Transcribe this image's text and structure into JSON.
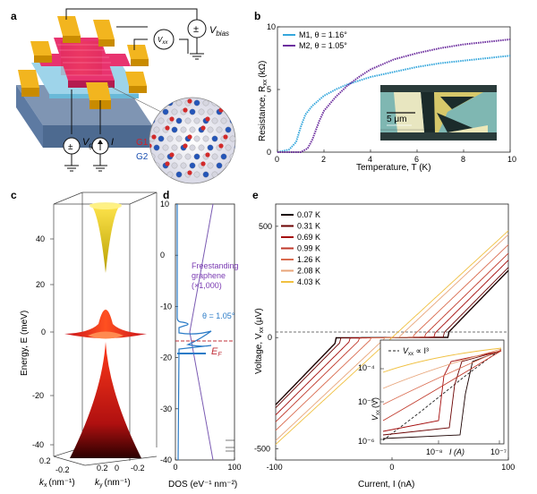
{
  "panels": {
    "a": {
      "letter": "a",
      "v_bias": "V",
      "v_bias_sub": "bias",
      "v_xx": "V",
      "v_xx_sub": "xx",
      "v_g": "V",
      "v_g_sub": "g",
      "current": "I",
      "layer1": "G1",
      "layer2": "G2"
    },
    "b": {
      "letter": "b",
      "legend": [
        "M1, θ = 1.16°",
        "M2, θ = 1.05°"
      ],
      "colors": [
        "#35a7dc",
        "#6c2e9e"
      ],
      "scale_bar": "5 μm",
      "xlabel": "Temperature, T (K)",
      "ylabel": "Resistance, R",
      "ylabel_sub": "xx",
      "ylabel_unit": "(kΩ)"
    },
    "c": {
      "letter": "c",
      "ylabel": "Energy, E (meV)",
      "kx_label": "k",
      "kx_sub": "x",
      "kx_unit": "(nm⁻¹)",
      "ky_label": "k",
      "ky_sub": "y",
      "ky_unit": "(nm⁻¹)"
    },
    "d": {
      "letter": "d",
      "freestanding": [
        "Freestanding",
        "graphene",
        "(×1,000)"
      ],
      "theta": "θ = 1.05°",
      "ef": "E",
      "ef_sub": "F",
      "xlabel": "DOS (eV⁻¹ nm⁻²)"
    },
    "e": {
      "letter": "e",
      "ylabel": "Voltage, V",
      "ylabel_sub": "xx",
      "ylabel_unit": "(μV)",
      "xlabel": "Current, I (nA)",
      "inset_legend": "V",
      "inset_legend_rest": "xx",
      "inset_legend_tail": " ∝ I³",
      "inset_ylabel": "V",
      "inset_ylabel_sub": "xx",
      "inset_ylabel_unit": "(V)",
      "inset_xlabel": "I (A)"
    }
  },
  "chart_data": [
    {
      "id": "b",
      "type": "line",
      "title": "",
      "xlabel": "Temperature, T (K)",
      "ylabel": "Resistance, Rxx (kΩ)",
      "xlim": [
        0,
        10
      ],
      "ylim": [
        0,
        10
      ],
      "xticks": [
        "0",
        "2",
        "4",
        "6",
        "8",
        "10"
      ],
      "yticks": [
        "0",
        "5",
        "10"
      ],
      "series": [
        {
          "name": "M1, θ = 1.16°",
          "x": [
            0,
            0.5,
            0.8,
            1.0,
            1.2,
            1.5,
            2.0,
            2.5,
            3.0,
            4.0,
            5.0,
            6.0,
            7.0,
            8.0,
            9.0,
            10.0
          ],
          "y": [
            0,
            0.2,
            0.8,
            2.0,
            3.0,
            3.7,
            4.5,
            5.0,
            5.4,
            6.0,
            6.4,
            6.8,
            7.1,
            7.3,
            7.5,
            7.7
          ]
        },
        {
          "name": "M2, θ = 1.05°",
          "x": [
            0,
            1.0,
            1.3,
            1.5,
            1.8,
            2.0,
            2.5,
            3.0,
            3.5,
            4.0,
            5.0,
            6.0,
            7.0,
            8.0,
            9.0,
            10.0
          ],
          "y": [
            0,
            0,
            0.3,
            1.0,
            2.5,
            3.3,
            4.4,
            5.3,
            6.0,
            6.6,
            7.4,
            7.9,
            8.3,
            8.6,
            8.8,
            9.0
          ]
        }
      ]
    },
    {
      "id": "d",
      "type": "line",
      "xlabel": "DOS (eV⁻¹ nm⁻²)",
      "ylabel": "",
      "xlim": [
        0,
        100
      ],
      "ylim": [
        -40,
        10
      ],
      "xticks": [
        "0",
        "100"
      ],
      "yticks": [
        "10",
        "0",
        "-10",
        "-20",
        "-30",
        "-40"
      ]
    },
    {
      "id": "e",
      "type": "line",
      "xlabel": "Current, I (nA)",
      "ylabel": "Voltage, Vxx (μV)",
      "xlim": [
        -100,
        100
      ],
      "ylim": [
        -550,
        600
      ],
      "xticks": [
        "-100",
        "0",
        "100"
      ],
      "yticks": [
        "500",
        "0",
        "-500"
      ],
      "series": [
        {
          "name": "0.07 K",
          "color": "#1a0000"
        },
        {
          "name": "0.31 K",
          "color": "#6b0000"
        },
        {
          "name": "0.69 K",
          "color": "#a50d0d"
        },
        {
          "name": "0.99 K",
          "color": "#c0392b"
        },
        {
          "name": "1.26 K",
          "color": "#d96a4e"
        },
        {
          "name": "2.08 K",
          "color": "#e8a57a"
        },
        {
          "name": "4.03 K",
          "color": "#f0c040"
        }
      ]
    }
  ],
  "panel_c_ticks": {
    "energy": [
      "40",
      "20",
      "0",
      "-20",
      "-40"
    ],
    "kx": [
      "0.2",
      "-0.2",
      "0.2"
    ],
    "ky": [
      "0",
      "-0.2"
    ],
    "kx_bottom": "0.2"
  },
  "panel_e_inset_ticks": {
    "y": [
      "10⁻⁴",
      "10⁻⁵",
      "10⁻⁶"
    ],
    "x": [
      "10⁻⁸",
      "10⁻⁷"
    ]
  }
}
